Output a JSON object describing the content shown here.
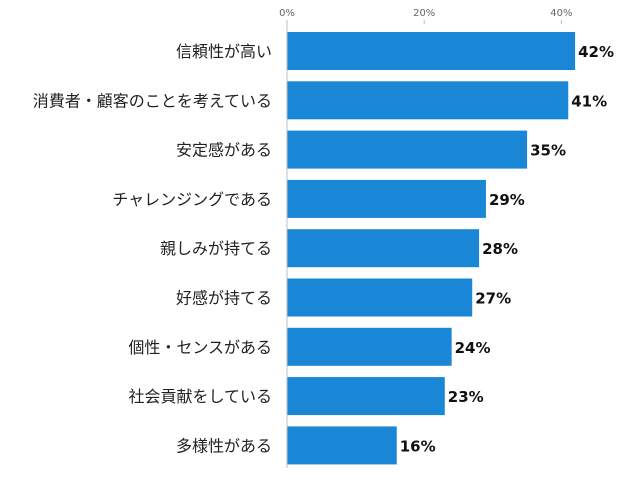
{
  "chart_data": {
    "type": "bar",
    "orientation": "horizontal",
    "categories": [
      "信頼性が高い",
      "消費者・顧客のことを考えている",
      "安定感がある",
      "チャレンジングである",
      "親しみが持てる",
      "好感が持てる",
      "個性・センスがある",
      "社会貢献をしている",
      "多様性がある"
    ],
    "values": [
      42,
      41,
      35,
      29,
      28,
      27,
      24,
      23,
      16
    ],
    "value_labels": [
      "42%",
      "41%",
      "35%",
      "29%",
      "28%",
      "27%",
      "24%",
      "23%",
      "16%"
    ],
    "xlim": [
      0,
      50
    ],
    "xticks": [
      0,
      20,
      40
    ],
    "xtick_labels": [
      "0%",
      "20%",
      "40%"
    ],
    "grid": false,
    "legend": "none",
    "bar_color": "#1a87d6",
    "axis_color": "#bfbfbf",
    "title": "",
    "xlabel": "",
    "ylabel": ""
  }
}
